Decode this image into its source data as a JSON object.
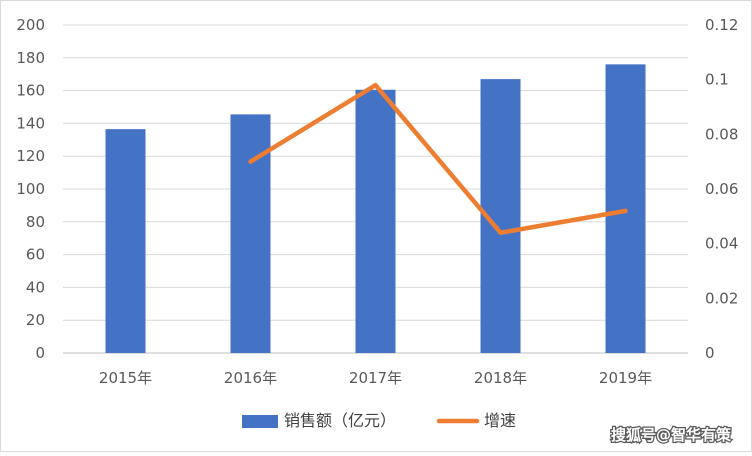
{
  "chart_data": {
    "type": "bar",
    "title": "",
    "categories": [
      "2015年",
      "2016年",
      "2017年",
      "2018年",
      "2019年"
    ],
    "series": [
      {
        "name": "销售额（亿元）",
        "type": "bar",
        "axis": "left",
        "color": "#4472C4",
        "values": [
          136.5,
          145.5,
          160.5,
          167,
          176
        ]
      },
      {
        "name": "增速",
        "type": "line",
        "axis": "right",
        "color": "#ED7D31",
        "values": [
          null,
          0.07,
          0.098,
          0.044,
          0.052
        ]
      }
    ],
    "y_left": {
      "min": 0,
      "max": 200,
      "step": 20,
      "ticks": [
        "0",
        "20",
        "40",
        "60",
        "80",
        "100",
        "120",
        "140",
        "160",
        "180",
        "200"
      ]
    },
    "y_right": {
      "min": 0,
      "max": 0.12,
      "step": 0.02,
      "ticks": [
        "0",
        "0.02",
        "0.04",
        "0.06",
        "0.08",
        "0.1",
        "0.12"
      ]
    },
    "grid": true,
    "legend_position": "bottom"
  },
  "watermark": "搜狐号@智华有策"
}
